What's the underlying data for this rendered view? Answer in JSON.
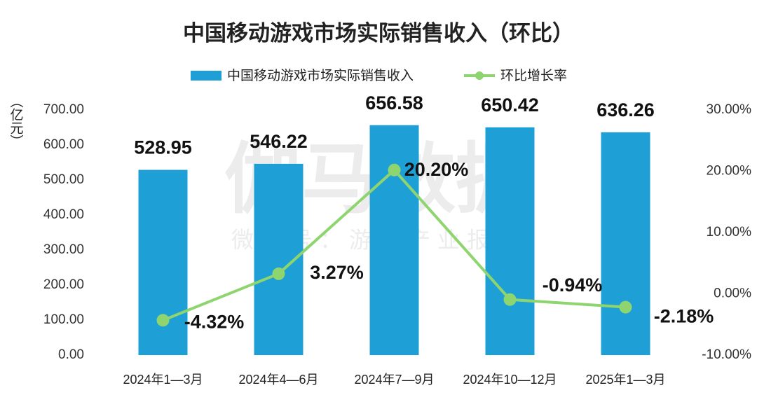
{
  "chart_data": {
    "type": "bar",
    "title": "中国移动游戏市场实际销售收入（环比）",
    "watermark": "伽马数据",
    "watermark_sub": "微信号：游戏产业报告",
    "y_label": "（亿元）",
    "categories": [
      "2024年1—3月",
      "2024年4—6月",
      "2024年7—9月",
      "2024年10—12月",
      "2025年1—3月"
    ],
    "series": [
      {
        "name": "中国移动游戏市场实际销售收入",
        "type": "bar",
        "color": "#1ea0d6",
        "values": [
          528.95,
          546.22,
          656.58,
          650.42,
          636.26
        ]
      },
      {
        "name": "环比增长率",
        "type": "line",
        "axis": "y2",
        "color": "#8ed46f",
        "values": [
          -4.32,
          3.27,
          20.2,
          -0.94,
          -2.18
        ],
        "value_labels": [
          "-4.32%",
          "3.27%",
          "20.20%",
          "-0.94%",
          "-2.18%"
        ]
      }
    ],
    "ylim": [
      0,
      700
    ],
    "yticks": [
      {
        "value": 0,
        "label": "0.00"
      },
      {
        "value": 100,
        "label": "100.00"
      },
      {
        "value": 200,
        "label": "200.00"
      },
      {
        "value": 300,
        "label": "300.00"
      },
      {
        "value": 400,
        "label": "400.00"
      },
      {
        "value": 500,
        "label": "500.00"
      },
      {
        "value": 600,
        "label": "600.00"
      },
      {
        "value": 700,
        "label": "700.00"
      }
    ],
    "y2lim": [
      -10,
      30
    ],
    "y2ticks": [
      {
        "value": -10,
        "label": "-10.00%"
      },
      {
        "value": 0,
        "label": "0.00%"
      },
      {
        "value": 10,
        "label": "10.00%"
      },
      {
        "value": 20,
        "label": "20.00%"
      },
      {
        "value": 30,
        "label": "30.00%"
      }
    ],
    "legend": "top"
  }
}
